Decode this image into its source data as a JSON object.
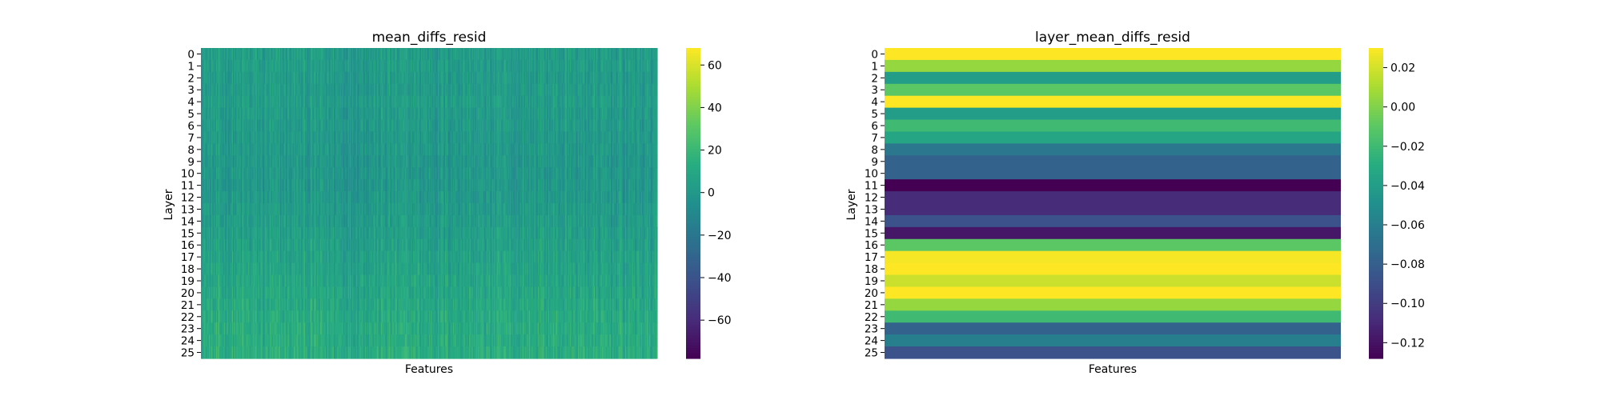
{
  "chart_data": [
    {
      "type": "heatmap",
      "title": "mean_diffs_resid",
      "xlabel": "Features",
      "ylabel": "Layer",
      "y_tick_labels": [
        "0",
        "1",
        "2",
        "3",
        "4",
        "5",
        "6",
        "7",
        "8",
        "9",
        "10",
        "11",
        "12",
        "13",
        "14",
        "15",
        "16",
        "17",
        "18",
        "19",
        "20",
        "21",
        "22",
        "23",
        "24",
        "25"
      ],
      "colormap": "viridis",
      "color_range": [
        -78,
        68
      ],
      "colorbar_ticks": [
        60,
        40,
        20,
        0,
        -20,
        -40,
        -60
      ],
      "colorbar_tick_labels": [
        "60",
        "40",
        "20",
        "0",
        "−20",
        "−40",
        "−60"
      ],
      "cell_values_note_free": true,
      "row_values": [
        3,
        3,
        2,
        2,
        3,
        2,
        2,
        1,
        1,
        0,
        0,
        0,
        1,
        2,
        3,
        4,
        5,
        6,
        7,
        8,
        9,
        10,
        11,
        12,
        12,
        13
      ],
      "feature_variation_amplitude": 14,
      "feature_columns": 512
    },
    {
      "type": "heatmap",
      "title": "layer_mean_diffs_resid",
      "xlabel": "Features",
      "ylabel": "Layer",
      "y_tick_labels": [
        "0",
        "1",
        "2",
        "3",
        "4",
        "5",
        "6",
        "7",
        "8",
        "9",
        "10",
        "11",
        "12",
        "13",
        "14",
        "15",
        "16",
        "17",
        "18",
        "19",
        "20",
        "21",
        "22",
        "23",
        "24",
        "25"
      ],
      "colormap": "viridis",
      "color_range": [
        -0.128,
        0.03
      ],
      "colorbar_ticks": [
        0.02,
        0.0,
        -0.02,
        -0.04,
        -0.06,
        -0.08,
        -0.1,
        -0.12
      ],
      "colorbar_tick_labels": [
        "0.02",
        "0.00",
        "−0.02",
        "−0.04",
        "−0.06",
        "−0.08",
        "−0.10",
        "−0.12"
      ],
      "row_values": [
        0.03,
        0.005,
        -0.04,
        -0.01,
        0.03,
        -0.04,
        -0.02,
        -0.035,
        -0.065,
        -0.078,
        -0.078,
        -0.128,
        -0.108,
        -0.108,
        -0.088,
        -0.118,
        -0.01,
        0.028,
        0.03,
        0.018,
        0.03,
        0.005,
        -0.02,
        -0.078,
        -0.06,
        -0.088
      ]
    }
  ]
}
